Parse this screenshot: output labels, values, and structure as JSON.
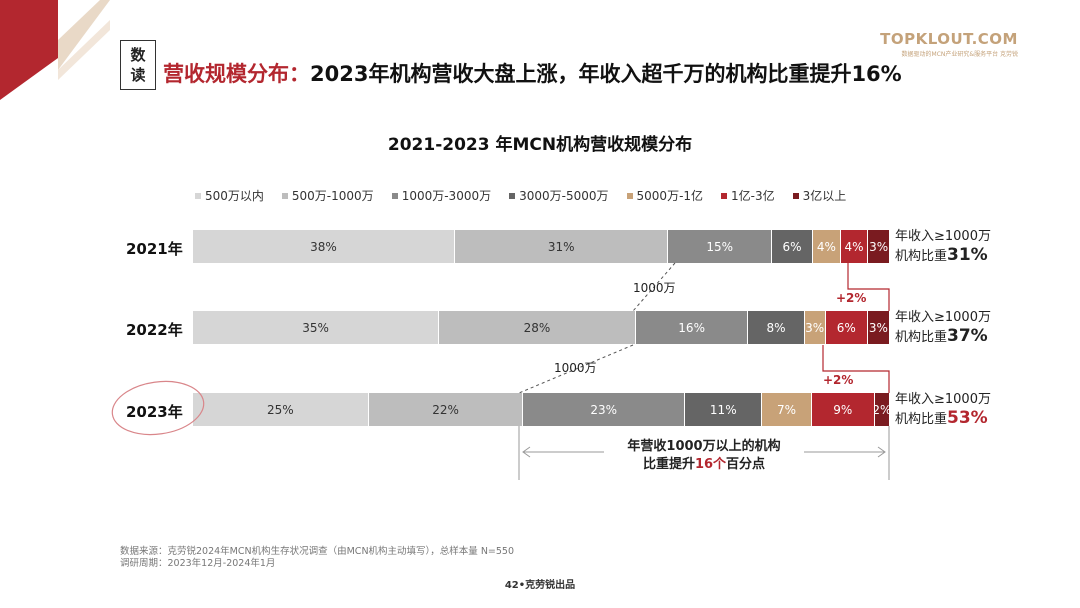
{
  "tag": {
    "line1": "数",
    "line2": "读"
  },
  "headline": {
    "highlight": "营收规模分布：",
    "rest": "2023年机构营收大盘上涨，年收入超千万的机构比重提升16%"
  },
  "logo": {
    "main": "TOPKLOUT.COM",
    "sub": "数据驱动的MCN产业研究&服务平台 克劳锐"
  },
  "colors": {
    "accent": "#b3272f",
    "gold": "#c4a27a"
  },
  "chart_data": {
    "type": "bar",
    "orientation": "horizontal-stacked-100",
    "title": "2021-2023 年MCN机构营收规模分布",
    "categories": [
      "2021年",
      "2022年",
      "2023年"
    ],
    "series": [
      {
        "name": "500万以内",
        "color": "#d6d6d6",
        "values": [
          38,
          35,
          25
        ]
      },
      {
        "name": "500万-1000万",
        "color": "#bdbdbd",
        "values": [
          31,
          28,
          22
        ]
      },
      {
        "name": "1000万-3000万",
        "color": "#8a8a8a",
        "values": [
          15,
          16,
          23
        ]
      },
      {
        "name": "3000万-5000万",
        "color": "#656565",
        "values": [
          6,
          8,
          11
        ]
      },
      {
        "name": "5000万-1亿",
        "color": "#c8a278",
        "values": [
          4,
          3,
          7
        ]
      },
      {
        "name": "1亿-3亿",
        "color": "#b3272f",
        "values": [
          4,
          6,
          9
        ]
      },
      {
        "name": "3亿以上",
        "color": "#7a1b20",
        "values": [
          3,
          3,
          2
        ]
      }
    ],
    "labels": [
      [
        "38%",
        "31%",
        "15%",
        "6%",
        "4%",
        "4%",
        "3%"
      ],
      [
        "35%",
        "28%",
        "16%",
        "8%",
        "3%",
        "6%",
        "3%"
      ],
      [
        "25%",
        "22%",
        "23%",
        "11%",
        "7%",
        "9%",
        "2%"
      ]
    ],
    "side_notes": [
      {
        "line1": "年收入≥1000万",
        "line2": "机构比重",
        "value": "31%"
      },
      {
        "line1": "年收入≥1000万",
        "line2": "机构比重",
        "value": "37%"
      },
      {
        "line1": "年收入≥1000万",
        "line2": "机构比重",
        "value": "53%"
      }
    ],
    "threshold_label": "1000万",
    "deltas": [
      "+2%",
      "+2%"
    ],
    "summary": {
      "line1": "年营收1000万以上的机构",
      "line2_pre": "比重提升",
      "line2_hl": "16个",
      "line2_post": "百分点"
    }
  },
  "footer": {
    "source": "数据来源：克劳锐2024年MCN机构生存状况调查（由MCN机构主动填写），总样本量 N=550",
    "period": "调研周期：2023年12月-2024年1月"
  },
  "page": "42•克劳锐出品"
}
